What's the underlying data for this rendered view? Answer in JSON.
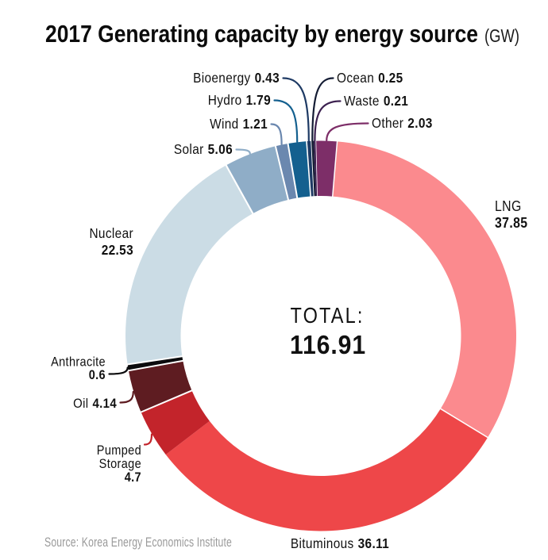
{
  "title": {
    "text": "2017 Generating capacity by energy source",
    "suffix": "(GW)"
  },
  "center": {
    "label": "TOTAL:",
    "value": "116.91"
  },
  "source_note": "Source: Korea Energy Economics Institute",
  "chart_data": {
    "type": "pie",
    "subtype": "donut",
    "title": "2017 Generating capacity by energy source (GW)",
    "unit": "GW",
    "total": 116.91,
    "total_label": "TOTAL:",
    "start_angle_deg_clockwise_from_top": 4.8,
    "legend_position": "labels-around-donut",
    "segments": [
      {
        "name": "LNG",
        "value": 37.85,
        "color": "#fb8a8e"
      },
      {
        "name": "Bituminous",
        "value": 36.11,
        "color": "#ee4749"
      },
      {
        "name": "Pumped Storage",
        "value": 4.7,
        "color": "#c3242b"
      },
      {
        "name": "Oil",
        "value": 4.14,
        "color": "#5e1c21"
      },
      {
        "name": "Anthracite",
        "value": 0.6,
        "color": "#0b0b0d"
      },
      {
        "name": "Nuclear",
        "value": 22.53,
        "color": "#cbdce5"
      },
      {
        "name": "Solar",
        "value": 5.06,
        "color": "#8fadc7"
      },
      {
        "name": "Wind",
        "value": 1.21,
        "color": "#6b88af"
      },
      {
        "name": "Hydro",
        "value": 1.79,
        "color": "#14608f"
      },
      {
        "name": "Bioenergy",
        "value": 0.43,
        "color": "#1e3a64"
      },
      {
        "name": "Ocean",
        "value": 0.25,
        "color": "#141c34"
      },
      {
        "name": "Waste",
        "value": 0.21,
        "color": "#3c2150"
      },
      {
        "name": "Other",
        "value": 2.03,
        "color": "#7d2e68"
      }
    ]
  }
}
